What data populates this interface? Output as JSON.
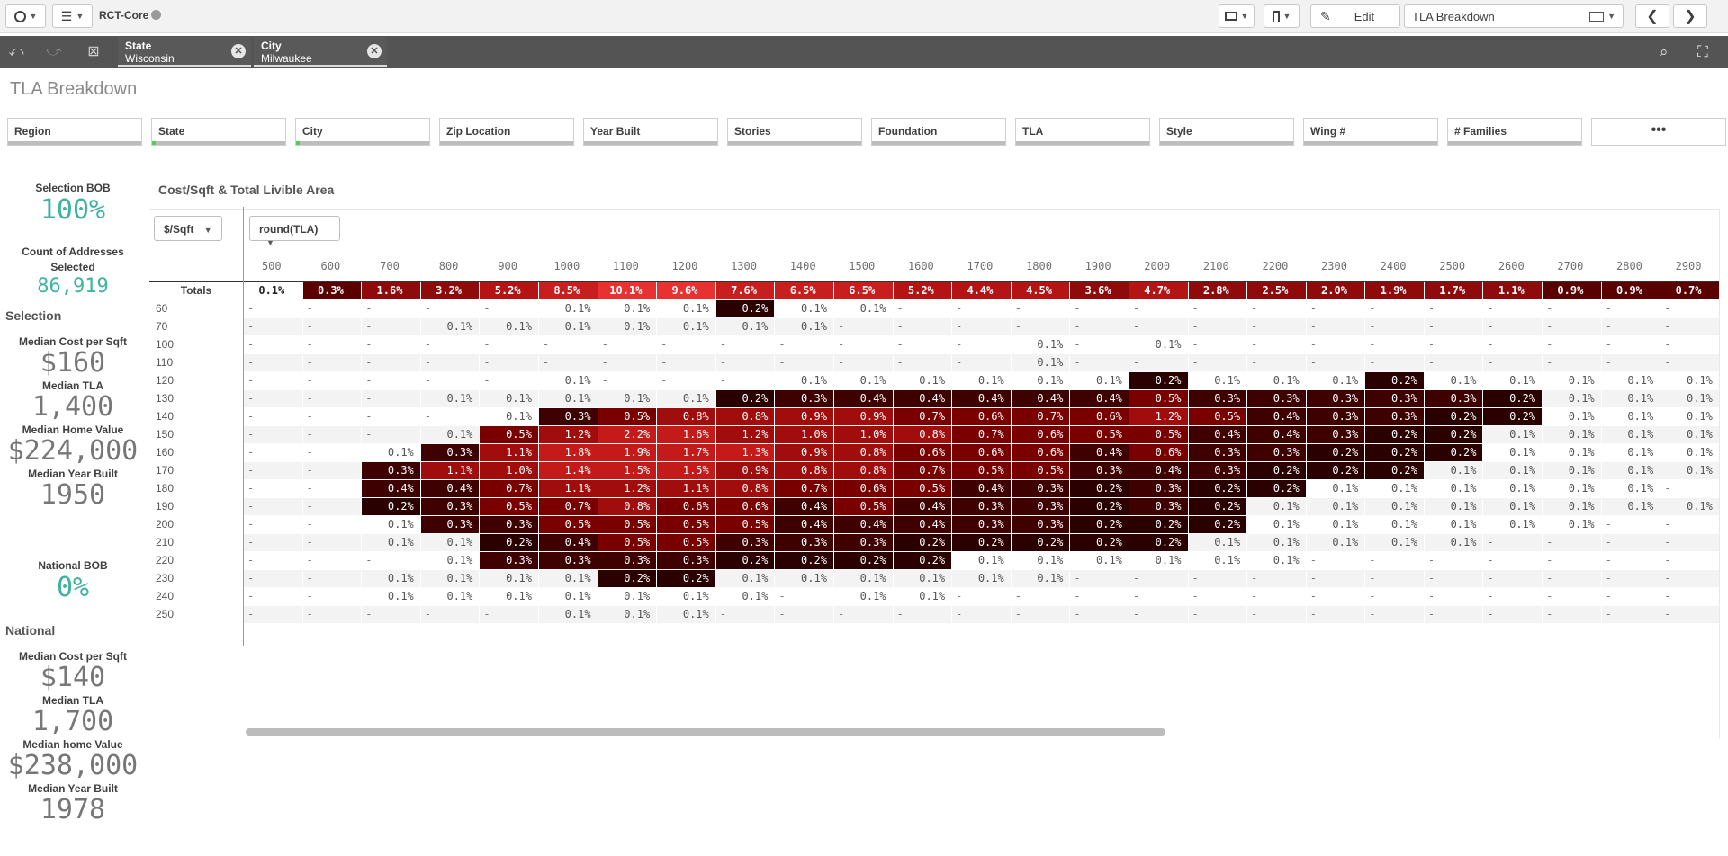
{
  "toolbar": {
    "app_name": "RCT-Core",
    "edit_label": "Edit",
    "sheet_selector": "TLA Breakdown"
  },
  "selections": [
    {
      "field": "State",
      "value": "Wisconsin"
    },
    {
      "field": "City",
      "value": "Milwaukee"
    }
  ],
  "sheet_title": "TLA Breakdown",
  "filters": [
    "Region",
    "State",
    "City",
    "Zip Location",
    "Year Built",
    "Stories",
    "Foundation",
    "TLA",
    "Style",
    "Wing #",
    "# Families",
    "•••"
  ],
  "kpis": {
    "selection_bob_label": "Selection BOB",
    "selection_bob_value": "100%",
    "count_label": "Count of Addresses Selected",
    "count_value": "86,919",
    "selection_heading": "Selection",
    "sel_cost_label": "Median Cost per Sqft",
    "sel_cost_value": "$160",
    "sel_tla_label": "Median TLA",
    "sel_tla_value": "1,400",
    "sel_home_label": "Median Home Value",
    "sel_home_value": "$224,000",
    "sel_year_label": "Median Year Built",
    "sel_year_value": "1950",
    "national_bob_label": "National BOB",
    "national_bob_value": "0%",
    "national_heading": "National",
    "nat_cost_label": "Median Cost per Sqft",
    "nat_cost_value": "$140",
    "nat_tla_label": "Median TLA",
    "nat_tla_value": "1,700",
    "nat_home_label": "Median home Value",
    "nat_home_value": "$238,000",
    "nat_year_label": "Median Year Built",
    "nat_year_value": "1978"
  },
  "pivot": {
    "title": "Cost/Sqft & Total Livible Area",
    "row_dimension": "$/Sqft",
    "col_dimension": "round(TLA)",
    "totals_label": "Totals",
    "columns": [
      "500",
      "600",
      "700",
      "800",
      "900",
      "1000",
      "1100",
      "1200",
      "1300",
      "1400",
      "1500",
      "1600",
      "1700",
      "1800",
      "1900",
      "2000",
      "2100",
      "2200",
      "2300",
      "2400",
      "2500",
      "2600",
      "2700",
      "2800",
      "2900"
    ],
    "totals": [
      "0.1%",
      "0.3%",
      "1.6%",
      "3.2%",
      "5.2%",
      "8.5%",
      "10.1%",
      "9.6%",
      "7.6%",
      "6.5%",
      "6.5%",
      "5.2%",
      "4.4%",
      "4.5%",
      "3.6%",
      "4.7%",
      "2.8%",
      "2.5%",
      "2.0%",
      "1.9%",
      "1.7%",
      "1.1%",
      "0.9%",
      "0.9%",
      "0.7%"
    ],
    "rows": [
      {
        "label": "60",
        "cells": [
          "-",
          "-",
          "-",
          "-",
          "-",
          "0.1%",
          "0.1%",
          "0.1%",
          "0.2%",
          "0.1%",
          "0.1%",
          "-",
          "-",
          "-",
          "-",
          "-",
          "-",
          "-",
          "-",
          "-",
          "-",
          "-",
          "-",
          "-",
          "-"
        ]
      },
      {
        "label": "70",
        "cells": [
          "-",
          "-",
          "-",
          "0.1%",
          "0.1%",
          "0.1%",
          "0.1%",
          "0.1%",
          "0.1%",
          "0.1%",
          "-",
          "-",
          "-",
          "-",
          "-",
          "-",
          "-",
          "-",
          "-",
          "-",
          "-",
          "-",
          "-",
          "-",
          "-"
        ]
      },
      {
        "label": "100",
        "cells": [
          "-",
          "-",
          "-",
          "-",
          "-",
          "-",
          "-",
          "-",
          "-",
          "-",
          "-",
          "-",
          "-",
          "0.1%",
          "-",
          "0.1%",
          "-",
          "-",
          "-",
          "-",
          "-",
          "-",
          "-",
          "-",
          "-"
        ]
      },
      {
        "label": "110",
        "cells": [
          "-",
          "-",
          "-",
          "-",
          "-",
          "-",
          "-",
          "-",
          "-",
          "-",
          "-",
          "-",
          "-",
          "0.1%",
          "-",
          "-",
          "-",
          "-",
          "-",
          "-",
          "-",
          "-",
          "-",
          "-",
          "-"
        ]
      },
      {
        "label": "120",
        "cells": [
          "-",
          "-",
          "-",
          "-",
          "-",
          "0.1%",
          "-",
          "-",
          "-",
          "0.1%",
          "0.1%",
          "0.1%",
          "0.1%",
          "0.1%",
          "0.1%",
          "0.2%",
          "0.1%",
          "0.1%",
          "0.1%",
          "0.2%",
          "0.1%",
          "0.1%",
          "0.1%",
          "0.1%",
          "0.1%"
        ]
      },
      {
        "label": "130",
        "cells": [
          "-",
          "-",
          "-",
          "0.1%",
          "0.1%",
          "0.1%",
          "0.1%",
          "0.1%",
          "0.2%",
          "0.3%",
          "0.4%",
          "0.4%",
          "0.4%",
          "0.4%",
          "0.4%",
          "0.5%",
          "0.3%",
          "0.3%",
          "0.3%",
          "0.3%",
          "0.3%",
          "0.2%",
          "0.1%",
          "0.1%",
          "0.1%"
        ]
      },
      {
        "label": "140",
        "cells": [
          "-",
          "-",
          "-",
          "-",
          "0.1%",
          "0.3%",
          "0.5%",
          "0.8%",
          "0.8%",
          "0.9%",
          "0.9%",
          "0.7%",
          "0.6%",
          "0.7%",
          "0.6%",
          "1.2%",
          "0.5%",
          "0.4%",
          "0.3%",
          "0.3%",
          "0.2%",
          "0.2%",
          "0.1%",
          "0.1%",
          "0.1%"
        ]
      },
      {
        "label": "150",
        "cells": [
          "-",
          "-",
          "-",
          "0.1%",
          "0.5%",
          "1.2%",
          "2.2%",
          "1.6%",
          "1.2%",
          "1.0%",
          "1.0%",
          "0.8%",
          "0.7%",
          "0.6%",
          "0.5%",
          "0.5%",
          "0.4%",
          "0.4%",
          "0.3%",
          "0.2%",
          "0.2%",
          "0.1%",
          "0.1%",
          "0.1%",
          "0.1%"
        ]
      },
      {
        "label": "160",
        "cells": [
          "-",
          "-",
          "0.1%",
          "0.3%",
          "1.1%",
          "1.8%",
          "1.9%",
          "1.7%",
          "1.3%",
          "0.9%",
          "0.8%",
          "0.6%",
          "0.6%",
          "0.6%",
          "0.4%",
          "0.6%",
          "0.3%",
          "0.3%",
          "0.2%",
          "0.2%",
          "0.2%",
          "0.1%",
          "0.1%",
          "0.1%",
          "0.1%"
        ]
      },
      {
        "label": "170",
        "cells": [
          "-",
          "-",
          "0.3%",
          "1.1%",
          "1.0%",
          "1.4%",
          "1.5%",
          "1.5%",
          "0.9%",
          "0.8%",
          "0.8%",
          "0.7%",
          "0.5%",
          "0.5%",
          "0.3%",
          "0.4%",
          "0.3%",
          "0.2%",
          "0.2%",
          "0.2%",
          "0.1%",
          "0.1%",
          "0.1%",
          "0.1%",
          "0.1%"
        ]
      },
      {
        "label": "180",
        "cells": [
          "-",
          "-",
          "0.4%",
          "0.4%",
          "0.7%",
          "1.1%",
          "1.2%",
          "1.1%",
          "0.8%",
          "0.7%",
          "0.6%",
          "0.5%",
          "0.4%",
          "0.3%",
          "0.2%",
          "0.3%",
          "0.2%",
          "0.2%",
          "0.1%",
          "0.1%",
          "0.1%",
          "0.1%",
          "0.1%",
          "0.1%",
          "-"
        ]
      },
      {
        "label": "190",
        "cells": [
          "-",
          "-",
          "0.2%",
          "0.3%",
          "0.5%",
          "0.7%",
          "0.8%",
          "0.6%",
          "0.6%",
          "0.4%",
          "0.5%",
          "0.4%",
          "0.3%",
          "0.3%",
          "0.2%",
          "0.3%",
          "0.2%",
          "0.1%",
          "0.1%",
          "0.1%",
          "0.1%",
          "0.1%",
          "0.1%",
          "0.1%",
          "0.1%"
        ]
      },
      {
        "label": "200",
        "cells": [
          "-",
          "-",
          "0.1%",
          "0.3%",
          "0.3%",
          "0.5%",
          "0.5%",
          "0.5%",
          "0.5%",
          "0.4%",
          "0.4%",
          "0.4%",
          "0.3%",
          "0.3%",
          "0.2%",
          "0.2%",
          "0.2%",
          "0.1%",
          "0.1%",
          "0.1%",
          "0.1%",
          "0.1%",
          "0.1%",
          "-",
          "-"
        ]
      },
      {
        "label": "210",
        "cells": [
          "-",
          "-",
          "0.1%",
          "0.1%",
          "0.2%",
          "0.4%",
          "0.5%",
          "0.5%",
          "0.3%",
          "0.3%",
          "0.3%",
          "0.2%",
          "0.2%",
          "0.2%",
          "0.2%",
          "0.2%",
          "0.1%",
          "0.1%",
          "0.1%",
          "0.1%",
          "0.1%",
          "-",
          "-",
          "-",
          "-"
        ]
      },
      {
        "label": "220",
        "cells": [
          "-",
          "-",
          "-",
          "0.1%",
          "0.3%",
          "0.3%",
          "0.3%",
          "0.3%",
          "0.2%",
          "0.2%",
          "0.2%",
          "0.2%",
          "0.1%",
          "0.1%",
          "0.1%",
          "0.1%",
          "0.1%",
          "0.1%",
          "-",
          "-",
          "-",
          "-",
          "-",
          "-",
          "-"
        ]
      },
      {
        "label": "230",
        "cells": [
          "-",
          "-",
          "0.1%",
          "0.1%",
          "0.1%",
          "0.1%",
          "0.2%",
          "0.2%",
          "0.1%",
          "0.1%",
          "0.1%",
          "0.1%",
          "0.1%",
          "0.1%",
          "-",
          "-",
          "-",
          "-",
          "-",
          "-",
          "-",
          "-",
          "-",
          "-",
          "-"
        ]
      },
      {
        "label": "240",
        "cells": [
          "-",
          "-",
          "0.1%",
          "0.1%",
          "0.1%",
          "0.1%",
          "0.1%",
          "0.1%",
          "0.1%",
          "-",
          "0.1%",
          "0.1%",
          "-",
          "-",
          "-",
          "-",
          "-",
          "-",
          "-",
          "-",
          "-",
          "-",
          "-",
          "-",
          "-"
        ]
      },
      {
        "label": "250",
        "cells": [
          "-",
          "-",
          "-",
          "-",
          "-",
          "0.1%",
          "0.1%",
          "0.1%",
          "-",
          "-",
          "-",
          "-",
          "-",
          "-",
          "-",
          "-",
          "-",
          "-",
          "-",
          "-",
          "-",
          "-",
          "-",
          "-",
          "-"
        ]
      }
    ]
  },
  "colors": {
    "accent_green": "#3cb4a0",
    "totals_scale": [
      "#6e0000",
      "#b01010",
      "#e83030"
    ],
    "cell_dark": "#2a0000",
    "cell_mid": "#c01818",
    "row_stripe": "#f3f3f3"
  }
}
